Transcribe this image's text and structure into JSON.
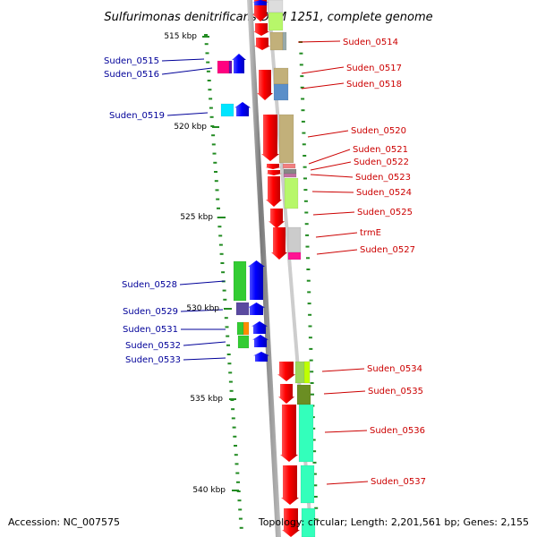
{
  "title": "Sulfurimonas denitrificans DSM 1251, complete genome",
  "scale_labels": [
    "515 kbp",
    "520 kbp",
    "525 kbp",
    "530 kbp",
    "535 kbp",
    "540 kbp"
  ],
  "genes_forward_labeled": [
    "Suden_0515",
    "Suden_0516",
    "Suden_0519",
    "Suden_0528",
    "Suden_0529",
    "Suden_0531",
    "Suden_0532",
    "Suden_0533"
  ],
  "genes_reverse_labeled": [
    "Suden_0514",
    "Suden_0517",
    "Suden_0518",
    "Suden_0520",
    "Suden_0521",
    "Suden_0522",
    "Suden_0523",
    "Suden_0524",
    "Suden_0525",
    "trmE",
    "Suden_0527",
    "Suden_0534",
    "Suden_0535",
    "Suden_0536",
    "Suden_0537"
  ],
  "colors": {
    "forward_label": "#000099",
    "reverse_label": "#cc0000",
    "forward_strand": "#0000ff",
    "reverse_strand": "#ff0000",
    "backbone": "#999999",
    "tick": "#228b22"
  },
  "footer": {
    "accession": "Accession: NC_007575",
    "topology": "Topology: circular; Length: 2,201,561 bp; Genes: 2,155"
  }
}
